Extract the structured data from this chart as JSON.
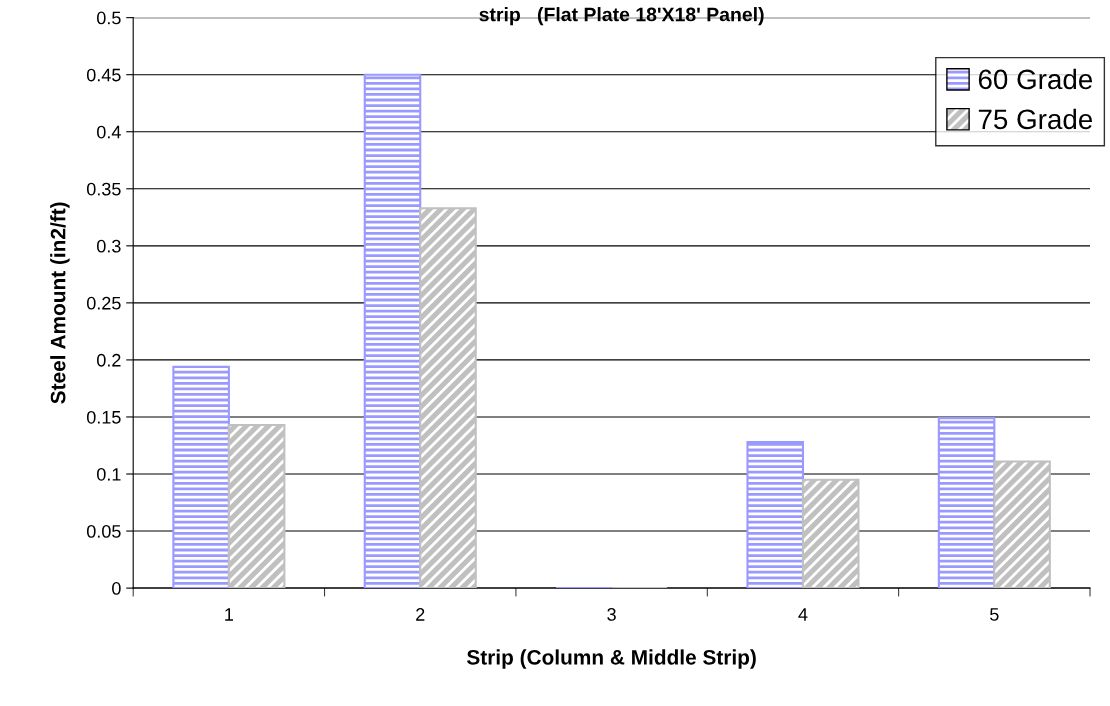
{
  "chart_data": {
    "type": "bar",
    "title": "strip   (Flat Plate 18'X18' Panel)",
    "xlabel": "Strip (Column & Middle Strip)",
    "ylabel": "Steel Amount (in2/ft)",
    "categories": [
      "1",
      "2",
      "3",
      "4",
      "5"
    ],
    "series": [
      {
        "name": "60 Grade",
        "color": "#9999ff",
        "values": [
          0.194,
          0.45,
          0,
          0.128,
          0.149
        ]
      },
      {
        "name": "75 Grade",
        "color": "#c0c0c0",
        "values": [
          0.143,
          0.333,
          0,
          0.095,
          0.111
        ]
      }
    ],
    "ylim": [
      0,
      0.5
    ],
    "yticks": [
      0,
      0.05,
      0.1,
      0.15,
      0.2,
      0.25,
      0.3,
      0.35,
      0.4,
      0.45,
      0.5
    ],
    "grid": "y",
    "legend": "top right"
  }
}
